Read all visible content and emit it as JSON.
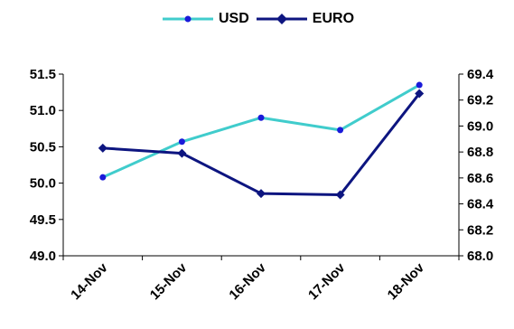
{
  "chart_data": {
    "type": "line",
    "categories": [
      "14-Nov",
      "15-Nov",
      "16-Nov",
      "17-Nov",
      "18-Nov"
    ],
    "series": [
      {
        "name": "USD",
        "axis": "left",
        "color": "#40CCCC",
        "marker": "circle",
        "values": [
          50.08,
          50.57,
          50.9,
          50.73,
          51.35
        ]
      },
      {
        "name": "EURO",
        "axis": "right",
        "color": "#0D1580",
        "marker": "diamond",
        "values": [
          68.83,
          68.79,
          68.48,
          68.47,
          69.25
        ]
      }
    ],
    "y_left": {
      "min": 49.0,
      "max": 51.5,
      "step": 0.5,
      "tick_labels": [
        "49.0",
        "49.5",
        "50.0",
        "50.5",
        "51.0",
        "51.5"
      ]
    },
    "y_right": {
      "min": 68.0,
      "max": 69.4,
      "step": 0.2,
      "tick_labels": [
        "68.0",
        "68.2",
        "68.4",
        "68.6",
        "68.8",
        "69.0",
        "69.2",
        "69.4"
      ]
    },
    "legend_position": "top-center",
    "grid": false
  }
}
